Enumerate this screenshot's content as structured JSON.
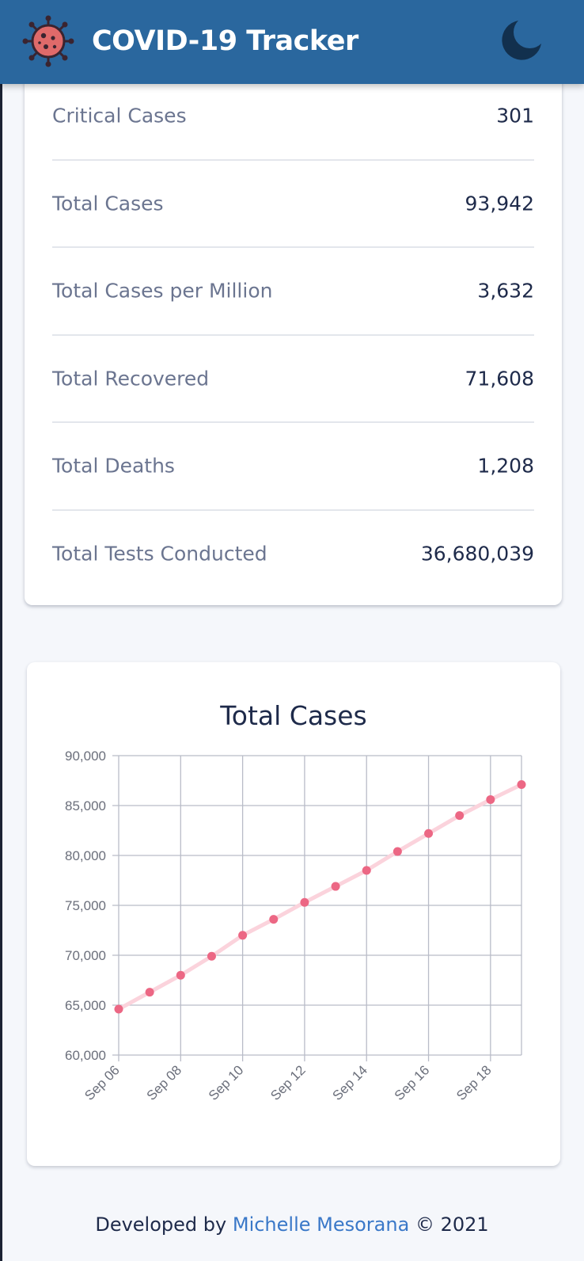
{
  "header": {
    "title": "COVID-19 Tracker",
    "logo_icon": "virus-icon",
    "theme_toggle_icon": "moon-icon",
    "bg_color": "#2a679e"
  },
  "stats": [
    {
      "label": "Critical Cases",
      "value": "301"
    },
    {
      "label": "Total Cases",
      "value": "93,942"
    },
    {
      "label": "Total Cases per Million",
      "value": "3,632"
    },
    {
      "label": "Total Recovered",
      "value": "71,608"
    },
    {
      "label": "Total Deaths",
      "value": "1,208"
    },
    {
      "label": "Total Tests Conducted",
      "value": "36,680,039"
    }
  ],
  "chart_data": {
    "type": "line",
    "title": "Total Cases",
    "xlabel": "",
    "ylabel": "",
    "x": [
      "Sep 06",
      "Sep 07",
      "Sep 08",
      "Sep 09",
      "Sep 10",
      "Sep 11",
      "Sep 12",
      "Sep 13",
      "Sep 14",
      "Sep 15",
      "Sep 16",
      "Sep 17",
      "Sep 18",
      "Sep 19"
    ],
    "x_tick_labels": [
      "Sep 06",
      "Sep 08",
      "Sep 10",
      "Sep 12",
      "Sep 14",
      "Sep 16",
      "Sep 18"
    ],
    "series": [
      {
        "values": [
          64600,
          66300,
          68000,
          69900,
          72000,
          73600,
          75300,
          76900,
          78500,
          80400,
          82200,
          84000,
          85600,
          87100
        ]
      }
    ],
    "ylim": [
      60000,
      90000
    ],
    "y_ticks": [
      "90,000",
      "85,000",
      "80,000",
      "75,000",
      "70,000",
      "65,000",
      "60,000"
    ],
    "grid": true,
    "line_color": "#fbd3dc",
    "point_color": "#ec6784"
  },
  "footer": {
    "prefix": "Developed by",
    "author": "Michelle Mesorana",
    "suffix": "© 2021"
  }
}
